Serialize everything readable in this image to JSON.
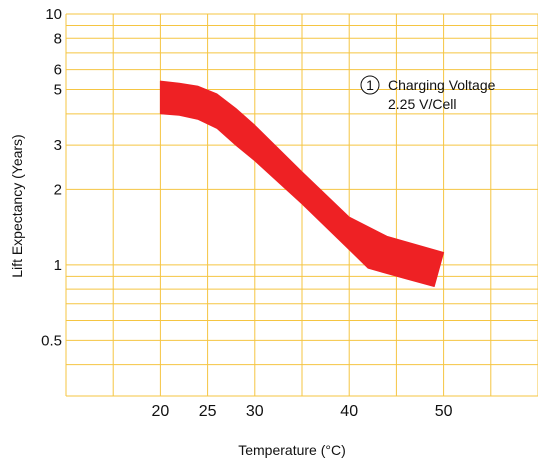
{
  "chart_data": {
    "type": "area",
    "xlabel": "Temperature (°C)",
    "ylabel": "Lift Expectancy (Years)",
    "x_scale": "linear",
    "y_scale": "log",
    "xlim": [
      10,
      60
    ],
    "ylim": [
      0.3,
      10
    ],
    "x_ticks": [
      20,
      25,
      30,
      40,
      50
    ],
    "x_tick_labels": [
      "20",
      "25",
      "30",
      "40",
      "50"
    ],
    "y_ticks": [
      0.5,
      1,
      2,
      3,
      5,
      6,
      8,
      10
    ],
    "y_tick_labels": [
      "0.5",
      "1",
      "2",
      "3",
      "5",
      "6",
      "8",
      "10"
    ],
    "grid": true,
    "grid_color": "#f5c542",
    "band_color": "#ee2124",
    "annotation": {
      "marker": "1",
      "line1": "Charging Voltage",
      "line2": "2.25 V/Cell"
    },
    "series": [
      {
        "upper": {
          "x": [
            20,
            22,
            24,
            26,
            28,
            30,
            35,
            40,
            44,
            50
          ],
          "y": [
            5.4,
            5.3,
            5.15,
            4.8,
            4.2,
            3.6,
            2.35,
            1.55,
            1.3,
            1.12
          ]
        },
        "lower": {
          "x": [
            20,
            22,
            24,
            26,
            28,
            30,
            35,
            40,
            42,
            46,
            49
          ],
          "y": [
            4.0,
            3.95,
            3.8,
            3.5,
            3.0,
            2.6,
            1.75,
            1.15,
            0.97,
            0.88,
            0.82
          ]
        }
      }
    ]
  }
}
